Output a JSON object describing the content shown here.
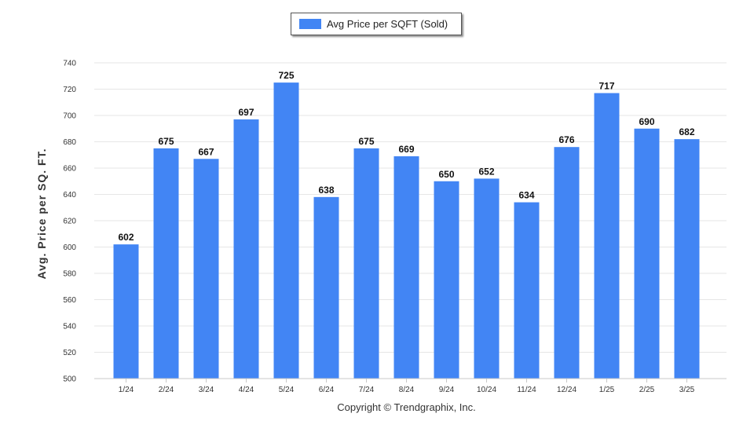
{
  "legend": {
    "label": "Avg Price per SQFT (Sold)"
  },
  "copyright": "Copyright © Trendgraphix, Inc.",
  "chart_data": {
    "type": "bar",
    "ylabel": "Avg. Price per SQ. FT.",
    "xlabel": "",
    "ylim": [
      500,
      740
    ],
    "ytick_step": 20,
    "grid": true,
    "legend_position": "top-center",
    "bar_color": "#4285f4",
    "categories": [
      "1/24",
      "2/24",
      "3/24",
      "4/24",
      "5/24",
      "6/24",
      "7/24",
      "8/24",
      "9/24",
      "10/24",
      "11/24",
      "12/24",
      "1/25",
      "2/25",
      "3/25"
    ],
    "series": [
      {
        "name": "Avg Price per SQFT (Sold)",
        "values": [
          602,
          675,
          667,
          697,
          725,
          638,
          675,
          669,
          650,
          652,
          634,
          676,
          717,
          690,
          682
        ]
      }
    ]
  }
}
